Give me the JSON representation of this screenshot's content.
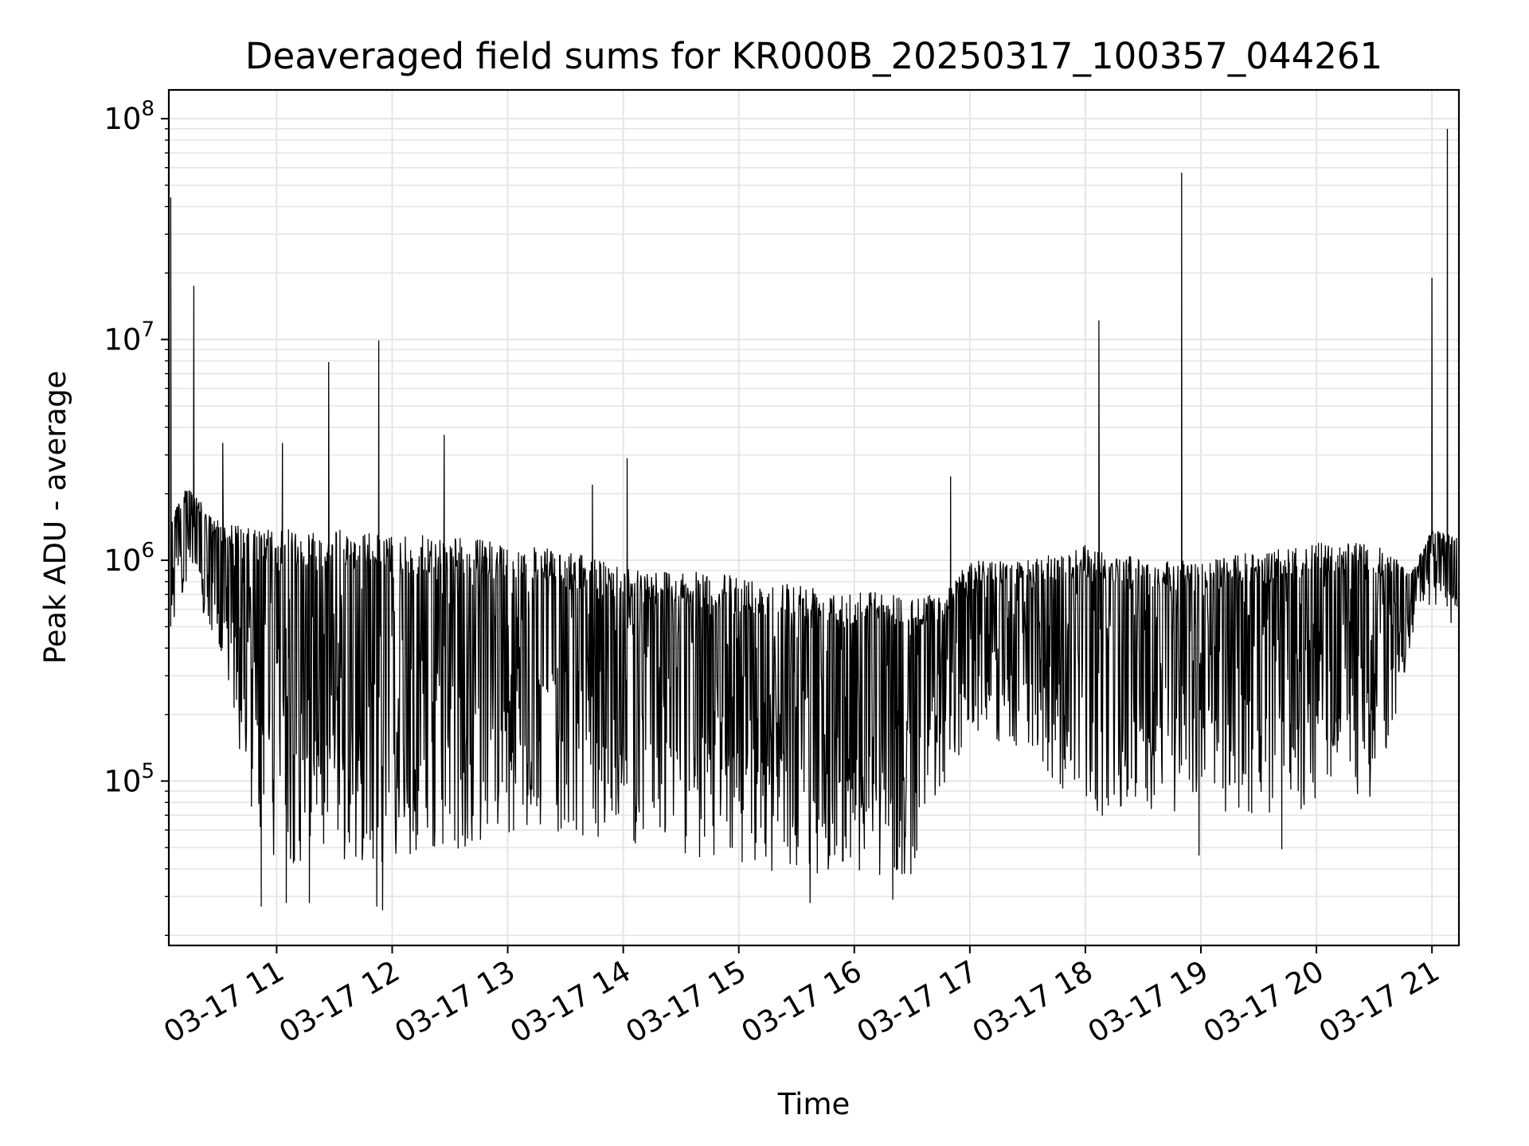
{
  "chart_data": {
    "type": "line",
    "title": "Deaveraged field sums for KR000B_20250317_100357_044261",
    "xlabel": "Time",
    "ylabel": "Peak ADU - average",
    "yscale": "log",
    "ylim": [
      18000,
      135000000
    ],
    "xlim": [
      "2025-03-17 10:04",
      "2025-03-17 21:14"
    ],
    "grid": true,
    "line_color": "#000000",
    "grid_color": "#e5e5e5",
    "x_ticks": [
      {
        "value": "2025-03-17 11:00",
        "label": "03-17 11"
      },
      {
        "value": "2025-03-17 12:00",
        "label": "03-17 12"
      },
      {
        "value": "2025-03-17 13:00",
        "label": "03-17 13"
      },
      {
        "value": "2025-03-17 14:00",
        "label": "03-17 14"
      },
      {
        "value": "2025-03-17 15:00",
        "label": "03-17 15"
      },
      {
        "value": "2025-03-17 16:00",
        "label": "03-17 16"
      },
      {
        "value": "2025-03-17 17:00",
        "label": "03-17 17"
      },
      {
        "value": "2025-03-17 18:00",
        "label": "03-17 18"
      },
      {
        "value": "2025-03-17 19:00",
        "label": "03-17 19"
      },
      {
        "value": "2025-03-17 20:00",
        "label": "03-17 20"
      },
      {
        "value": "2025-03-17 21:00",
        "label": "03-17 21"
      }
    ],
    "y_ticks": [
      {
        "value": 100000,
        "base": "10",
        "exp": "5"
      },
      {
        "value": 1000000,
        "base": "10",
        "exp": "6"
      },
      {
        "value": 10000000,
        "base": "10",
        "exp": "7"
      },
      {
        "value": 100000000,
        "base": "10",
        "exp": "8"
      }
    ],
    "envelope": [
      {
        "x": "2025-03-17 10:05",
        "high": 1700000,
        "low": 400000
      },
      {
        "x": "2025-03-17 10:15",
        "high": 2200000,
        "low": 900000
      },
      {
        "x": "2025-03-17 10:25",
        "high": 1600000,
        "low": 400000
      },
      {
        "x": "2025-03-17 10:35",
        "high": 1500000,
        "low": 250000
      },
      {
        "x": "2025-03-17 10:45",
        "high": 1400000,
        "low": 60000
      },
      {
        "x": "2025-03-17 11:00",
        "high": 1400000,
        "low": 35000
      },
      {
        "x": "2025-03-17 11:30",
        "high": 1400000,
        "low": 35000
      },
      {
        "x": "2025-03-17 12:00",
        "high": 1300000,
        "low": 35000
      },
      {
        "x": "2025-03-17 12:30",
        "high": 1300000,
        "low": 40000
      },
      {
        "x": "2025-03-17 13:00",
        "high": 1200000,
        "low": 50000
      },
      {
        "x": "2025-03-17 13:30",
        "high": 1100000,
        "low": 50000
      },
      {
        "x": "2025-03-17 14:00",
        "high": 950000,
        "low": 45000
      },
      {
        "x": "2025-03-17 14:30",
        "high": 900000,
        "low": 40000
      },
      {
        "x": "2025-03-17 15:00",
        "high": 850000,
        "low": 35000
      },
      {
        "x": "2025-03-17 15:30",
        "high": 800000,
        "low": 32000
      },
      {
        "x": "2025-03-17 16:00",
        "high": 750000,
        "low": 32000
      },
      {
        "x": "2025-03-17 16:30",
        "high": 700000,
        "low": 32000
      },
      {
        "x": "2025-03-17 16:45",
        "high": 700000,
        "low": 80000
      },
      {
        "x": "2025-03-17 17:00",
        "high": 1000000,
        "low": 150000
      },
      {
        "x": "2025-03-17 17:30",
        "high": 1000000,
        "low": 120000
      },
      {
        "x": "2025-03-17 18:00",
        "high": 1200000,
        "low": 60000
      },
      {
        "x": "2025-03-17 18:30",
        "high": 1000000,
        "low": 60000
      },
      {
        "x": "2025-03-17 19:00",
        "high": 1000000,
        "low": 65000
      },
      {
        "x": "2025-03-17 19:30",
        "high": 1100000,
        "low": 60000
      },
      {
        "x": "2025-03-17 20:00",
        "high": 1200000,
        "low": 60000
      },
      {
        "x": "2025-03-17 20:30",
        "high": 1200000,
        "low": 70000
      },
      {
        "x": "2025-03-17 20:50",
        "high": 900000,
        "low": 400000
      },
      {
        "x": "2025-03-17 21:00",
        "high": 1400000,
        "low": 600000
      },
      {
        "x": "2025-03-17 21:13",
        "high": 1300000,
        "low": 450000
      }
    ],
    "spikes": [
      {
        "x": "2025-03-17 10:05",
        "y": 44000000
      },
      {
        "x": "2025-03-17 10:17",
        "y": 17500000
      },
      {
        "x": "2025-03-17 10:32",
        "y": 3400000
      },
      {
        "x": "2025-03-17 11:03",
        "y": 3400000
      },
      {
        "x": "2025-03-17 11:27",
        "y": 7900000
      },
      {
        "x": "2025-03-17 11:53",
        "y": 9900000
      },
      {
        "x": "2025-03-17 12:27",
        "y": 3700000
      },
      {
        "x": "2025-03-17 13:44",
        "y": 2200000
      },
      {
        "x": "2025-03-17 14:02",
        "y": 2900000
      },
      {
        "x": "2025-03-17 16:50",
        "y": 2400000
      },
      {
        "x": "2025-03-17 18:07",
        "y": 12200000
      },
      {
        "x": "2025-03-17 18:50",
        "y": 57000000
      },
      {
        "x": "2025-03-17 21:00",
        "y": 19000000
      },
      {
        "x": "2025-03-17 21:08",
        "y": 90000000
      }
    ],
    "dips": [
      {
        "x": "2025-03-17 10:52",
        "y": 27000
      },
      {
        "x": "2025-03-17 11:05",
        "y": 28000
      },
      {
        "x": "2025-03-17 11:17",
        "y": 28000
      },
      {
        "x": "2025-03-17 11:52",
        "y": 27000
      },
      {
        "x": "2025-03-17 11:55",
        "y": 26000
      },
      {
        "x": "2025-03-17 15:37",
        "y": 28000
      },
      {
        "x": "2025-03-17 16:20",
        "y": 29000
      },
      {
        "x": "2025-03-17 18:59",
        "y": 46000
      },
      {
        "x": "2025-03-17 19:42",
        "y": 49000
      }
    ]
  }
}
